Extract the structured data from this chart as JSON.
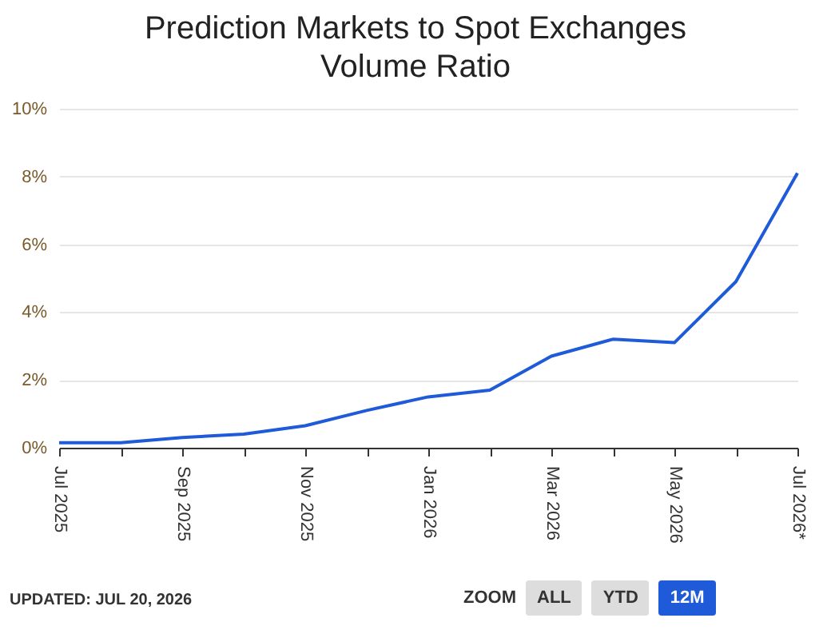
{
  "chart_data": {
    "type": "line",
    "title": "Prediction Markets to Spot Exchanges Volume Ratio",
    "categories": [
      "Jul 2025",
      null,
      "Sep 2025",
      null,
      "Nov 2025",
      null,
      "Jan 2026",
      null,
      "Mar 2026",
      null,
      "May 2026",
      null,
      "Jul 2026*"
    ],
    "series": [
      {
        "color": "#1f5bd8",
        "values": [
          0.15,
          0.15,
          0.3,
          0.4,
          0.65,
          1.1,
          1.5,
          1.7,
          2.7,
          3.2,
          3.1,
          4.9,
          8.1
        ]
      }
    ],
    "ylim": [
      0,
      10
    ],
    "yticks": [
      {
        "value": 0,
        "label": "0%"
      },
      {
        "value": 2,
        "label": "2%"
      },
      {
        "value": 4,
        "label": "4%"
      },
      {
        "value": 6,
        "label": "6%"
      },
      {
        "value": 8,
        "label": "8%"
      },
      {
        "value": 10,
        "label": "10%"
      }
    ],
    "grid": "y",
    "legend": false,
    "marker": "none",
    "line_style": "solid",
    "annotations": [
      "UPDATED: JUL 20, 2026",
      "ZOOM",
      "ALL",
      "YTD",
      "12M"
    ]
  }
}
